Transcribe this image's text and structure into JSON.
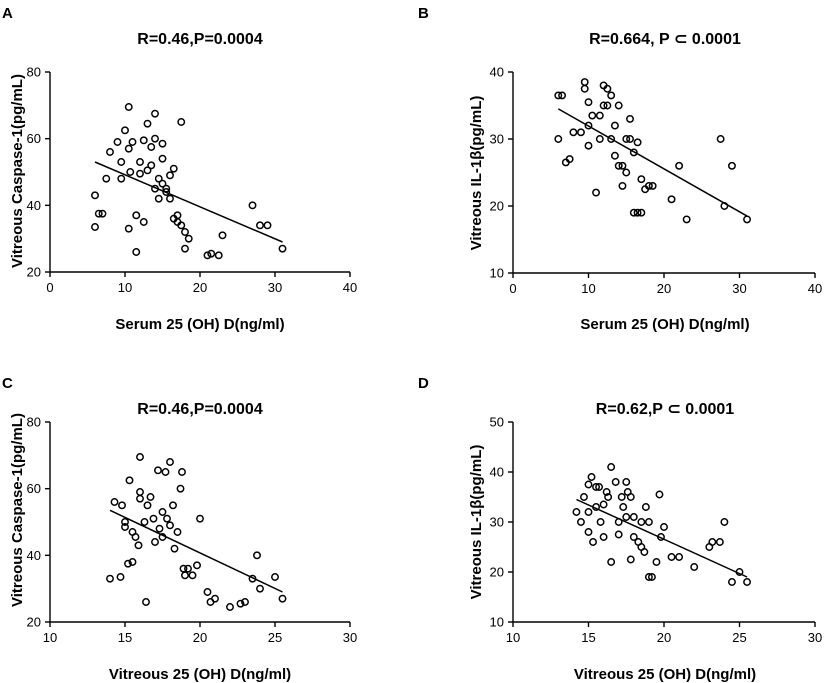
{
  "chart_data": [
    {
      "type": "scatter",
      "panel": "A",
      "title": "R=0.46,P=0.0004",
      "xlabel": "Serum 25 (OH) D(ng/ml)",
      "ylabel": "Vitreous Caspase-1(pg/mL)",
      "xlim": [
        0,
        40
      ],
      "ylim": [
        20,
        80
      ],
      "xticks": [
        "0",
        "10",
        "20",
        "30",
        "40"
      ],
      "yticks": [
        "20",
        "40",
        "60",
        "80"
      ],
      "fit": {
        "x": [
          6,
          31
        ],
        "y": [
          53,
          29
        ]
      },
      "points": [
        [
          6,
          33.5
        ],
        [
          6,
          43
        ],
        [
          6.5,
          37.5
        ],
        [
          7,
          37.5
        ],
        [
          7.5,
          48
        ],
        [
          8,
          56
        ],
        [
          9,
          59
        ],
        [
          9.5,
          53
        ],
        [
          9.5,
          48
        ],
        [
          10,
          62.5
        ],
        [
          10.5,
          57
        ],
        [
          10.5,
          33
        ],
        [
          10.5,
          69.5
        ],
        [
          10.7,
          50
        ],
        [
          11,
          59
        ],
        [
          11.5,
          37
        ],
        [
          11.5,
          26
        ],
        [
          12,
          49.5
        ],
        [
          12,
          53
        ],
        [
          12.5,
          59.5
        ],
        [
          12.5,
          35
        ],
        [
          13,
          50.5
        ],
        [
          13,
          64.5
        ],
        [
          13.5,
          57.5
        ],
        [
          13.5,
          52
        ],
        [
          14,
          67.5
        ],
        [
          14,
          60
        ],
        [
          14,
          45
        ],
        [
          14.5,
          48
        ],
        [
          14.5,
          42
        ],
        [
          15,
          46.5
        ],
        [
          15,
          58.5
        ],
        [
          15,
          54
        ],
        [
          15.5,
          45
        ],
        [
          15.5,
          44
        ],
        [
          16,
          49
        ],
        [
          16,
          42
        ],
        [
          16.5,
          51
        ],
        [
          16.5,
          36
        ],
        [
          17,
          35
        ],
        [
          17,
          37
        ],
        [
          17.5,
          34
        ],
        [
          17.5,
          65
        ],
        [
          18,
          32
        ],
        [
          18,
          27
        ],
        [
          18.5,
          30
        ],
        [
          21,
          25
        ],
        [
          21.5,
          25.5
        ],
        [
          22.5,
          25
        ],
        [
          23,
          31
        ],
        [
          27,
          40
        ],
        [
          28,
          34
        ],
        [
          29,
          34
        ],
        [
          31,
          27
        ]
      ]
    },
    {
      "type": "scatter",
      "panel": "B",
      "title": "R=0.664, P ⊂ 0.0001",
      "xlabel": "Serum 25 (OH) D(ng/ml)",
      "ylabel": "Vitreous IL-1β(pg/mL)",
      "xlim": [
        0,
        40
      ],
      "ylim": [
        10,
        40
      ],
      "xticks": [
        "0",
        "10",
        "20",
        "30",
        "40"
      ],
      "yticks": [
        "10",
        "20",
        "30",
        "40"
      ],
      "fit": {
        "x": [
          6,
          31
        ],
        "y": [
          34.5,
          18.5
        ]
      },
      "points": [
        [
          6,
          30
        ],
        [
          6,
          36.5
        ],
        [
          6.5,
          36.5
        ],
        [
          7,
          26.5
        ],
        [
          7.5,
          27
        ],
        [
          8,
          31
        ],
        [
          9,
          31
        ],
        [
          9.5,
          38.5
        ],
        [
          9.5,
          37.5
        ],
        [
          10,
          35.5
        ],
        [
          10,
          32
        ],
        [
          10,
          29
        ],
        [
          10.5,
          33.5
        ],
        [
          11,
          22
        ],
        [
          11.5,
          33.5
        ],
        [
          11.5,
          30
        ],
        [
          12,
          38
        ],
        [
          12,
          35
        ],
        [
          12.5,
          37.5
        ],
        [
          12.5,
          35
        ],
        [
          13,
          36.5
        ],
        [
          13,
          30
        ],
        [
          13.5,
          32
        ],
        [
          13.5,
          27.5
        ],
        [
          14,
          35
        ],
        [
          14,
          26
        ],
        [
          14.5,
          26
        ],
        [
          14.5,
          23
        ],
        [
          15,
          25
        ],
        [
          15,
          30
        ],
        [
          15.5,
          33
        ],
        [
          15.5,
          30
        ],
        [
          16,
          28
        ],
        [
          16,
          19
        ],
        [
          16.5,
          29.5
        ],
        [
          16.5,
          19
        ],
        [
          17,
          24
        ],
        [
          17,
          19
        ],
        [
          17.5,
          22.5
        ],
        [
          18,
          23
        ],
        [
          18.5,
          23
        ],
        [
          21,
          21
        ],
        [
          22,
          26
        ],
        [
          23,
          18
        ],
        [
          27.5,
          30
        ],
        [
          28,
          20
        ],
        [
          29,
          26
        ],
        [
          31,
          18
        ]
      ]
    },
    {
      "type": "scatter",
      "panel": "C",
      "title": "R=0.46,P=0.0004",
      "xlabel": "Vitreous 25 (OH) D(ng/ml)",
      "ylabel": "Vitreous Caspase-1(pg/mL)",
      "xlim": [
        10,
        30
      ],
      "ylim": [
        20,
        80
      ],
      "xticks": [
        "10",
        "15",
        "20",
        "25",
        "30"
      ],
      "yticks": [
        "20",
        "40",
        "60",
        "80"
      ],
      "fit": {
        "x": [
          14,
          25.5
        ],
        "y": [
          53.5,
          29
        ]
      },
      "points": [
        [
          14,
          33
        ],
        [
          14.3,
          56
        ],
        [
          14.7,
          33.5
        ],
        [
          14.8,
          55
        ],
        [
          15,
          50
        ],
        [
          15,
          48.5
        ],
        [
          15.2,
          37.5
        ],
        [
          15.3,
          62.5
        ],
        [
          15.5,
          38
        ],
        [
          15.5,
          47
        ],
        [
          15.7,
          45.5
        ],
        [
          15.9,
          43
        ],
        [
          16,
          57
        ],
        [
          16,
          59
        ],
        [
          16,
          69.5
        ],
        [
          16.3,
          50
        ],
        [
          16.4,
          26
        ],
        [
          16.5,
          55
        ],
        [
          16.7,
          57.5
        ],
        [
          16.9,
          51
        ],
        [
          17,
          44
        ],
        [
          17.2,
          65.5
        ],
        [
          17.3,
          48
        ],
        [
          17.5,
          53
        ],
        [
          17.5,
          45.5
        ],
        [
          17.7,
          65
        ],
        [
          17.8,
          51
        ],
        [
          18,
          49
        ],
        [
          18,
          68
        ],
        [
          18.2,
          55
        ],
        [
          18.3,
          42
        ],
        [
          18.5,
          47
        ],
        [
          18.7,
          60
        ],
        [
          18.8,
          65
        ],
        [
          18.9,
          36
        ],
        [
          19,
          34
        ],
        [
          19.2,
          36
        ],
        [
          19.5,
          34
        ],
        [
          19.8,
          37
        ],
        [
          20,
          51
        ],
        [
          20.5,
          29
        ],
        [
          20.7,
          26
        ],
        [
          21,
          27
        ],
        [
          22,
          24.5
        ],
        [
          22.7,
          25.5
        ],
        [
          23,
          26
        ],
        [
          23.5,
          33
        ],
        [
          23.8,
          40
        ],
        [
          24,
          30
        ],
        [
          25,
          33.5
        ],
        [
          25.5,
          27
        ]
      ]
    },
    {
      "type": "scatter",
      "panel": "D",
      "title": "R=0.62,P ⊂ 0.0001",
      "xlabel": "Vitreous 25 (OH) D(ng/ml)",
      "ylabel": "Vitreous IL-1β(pg/mL)",
      "xlim": [
        10,
        30
      ],
      "ylim": [
        10,
        50
      ],
      "xticks": [
        "10",
        "15",
        "20",
        "25",
        "30"
      ],
      "yticks": [
        "10",
        "20",
        "30",
        "40",
        "50"
      ],
      "fit": {
        "x": [
          14.2,
          25.5
        ],
        "y": [
          34.5,
          19
        ]
      },
      "points": [
        [
          14.2,
          32
        ],
        [
          14.5,
          30
        ],
        [
          14.7,
          35
        ],
        [
          15,
          37.5
        ],
        [
          15,
          32
        ],
        [
          15,
          28
        ],
        [
          15.2,
          39
        ],
        [
          15.3,
          26
        ],
        [
          15.5,
          37
        ],
        [
          15.5,
          33
        ],
        [
          15.7,
          37
        ],
        [
          15.8,
          30
        ],
        [
          16,
          33.5
        ],
        [
          16,
          27
        ],
        [
          16.2,
          36
        ],
        [
          16.3,
          35
        ],
        [
          16.5,
          41
        ],
        [
          16.5,
          22
        ],
        [
          16.8,
          38
        ],
        [
          17,
          30
        ],
        [
          17,
          27.5
        ],
        [
          17.2,
          35
        ],
        [
          17.3,
          33
        ],
        [
          17.5,
          31
        ],
        [
          17.5,
          38
        ],
        [
          17.6,
          36
        ],
        [
          17.8,
          35
        ],
        [
          17.8,
          22.5
        ],
        [
          18,
          31
        ],
        [
          18,
          27
        ],
        [
          18.3,
          26
        ],
        [
          18.5,
          25
        ],
        [
          18.5,
          30
        ],
        [
          18.7,
          24
        ],
        [
          18.8,
          33
        ],
        [
          19,
          30
        ],
        [
          19,
          19
        ],
        [
          19.2,
          19
        ],
        [
          19.5,
          22
        ],
        [
          19.7,
          35.5
        ],
        [
          19.8,
          27
        ],
        [
          20,
          29
        ],
        [
          20.5,
          23
        ],
        [
          21,
          23
        ],
        [
          22,
          21
        ],
        [
          23,
          25
        ],
        [
          23.2,
          26
        ],
        [
          23.7,
          26
        ],
        [
          24,
          30
        ],
        [
          24.5,
          18
        ],
        [
          25,
          20
        ],
        [
          25.5,
          18
        ]
      ]
    }
  ]
}
